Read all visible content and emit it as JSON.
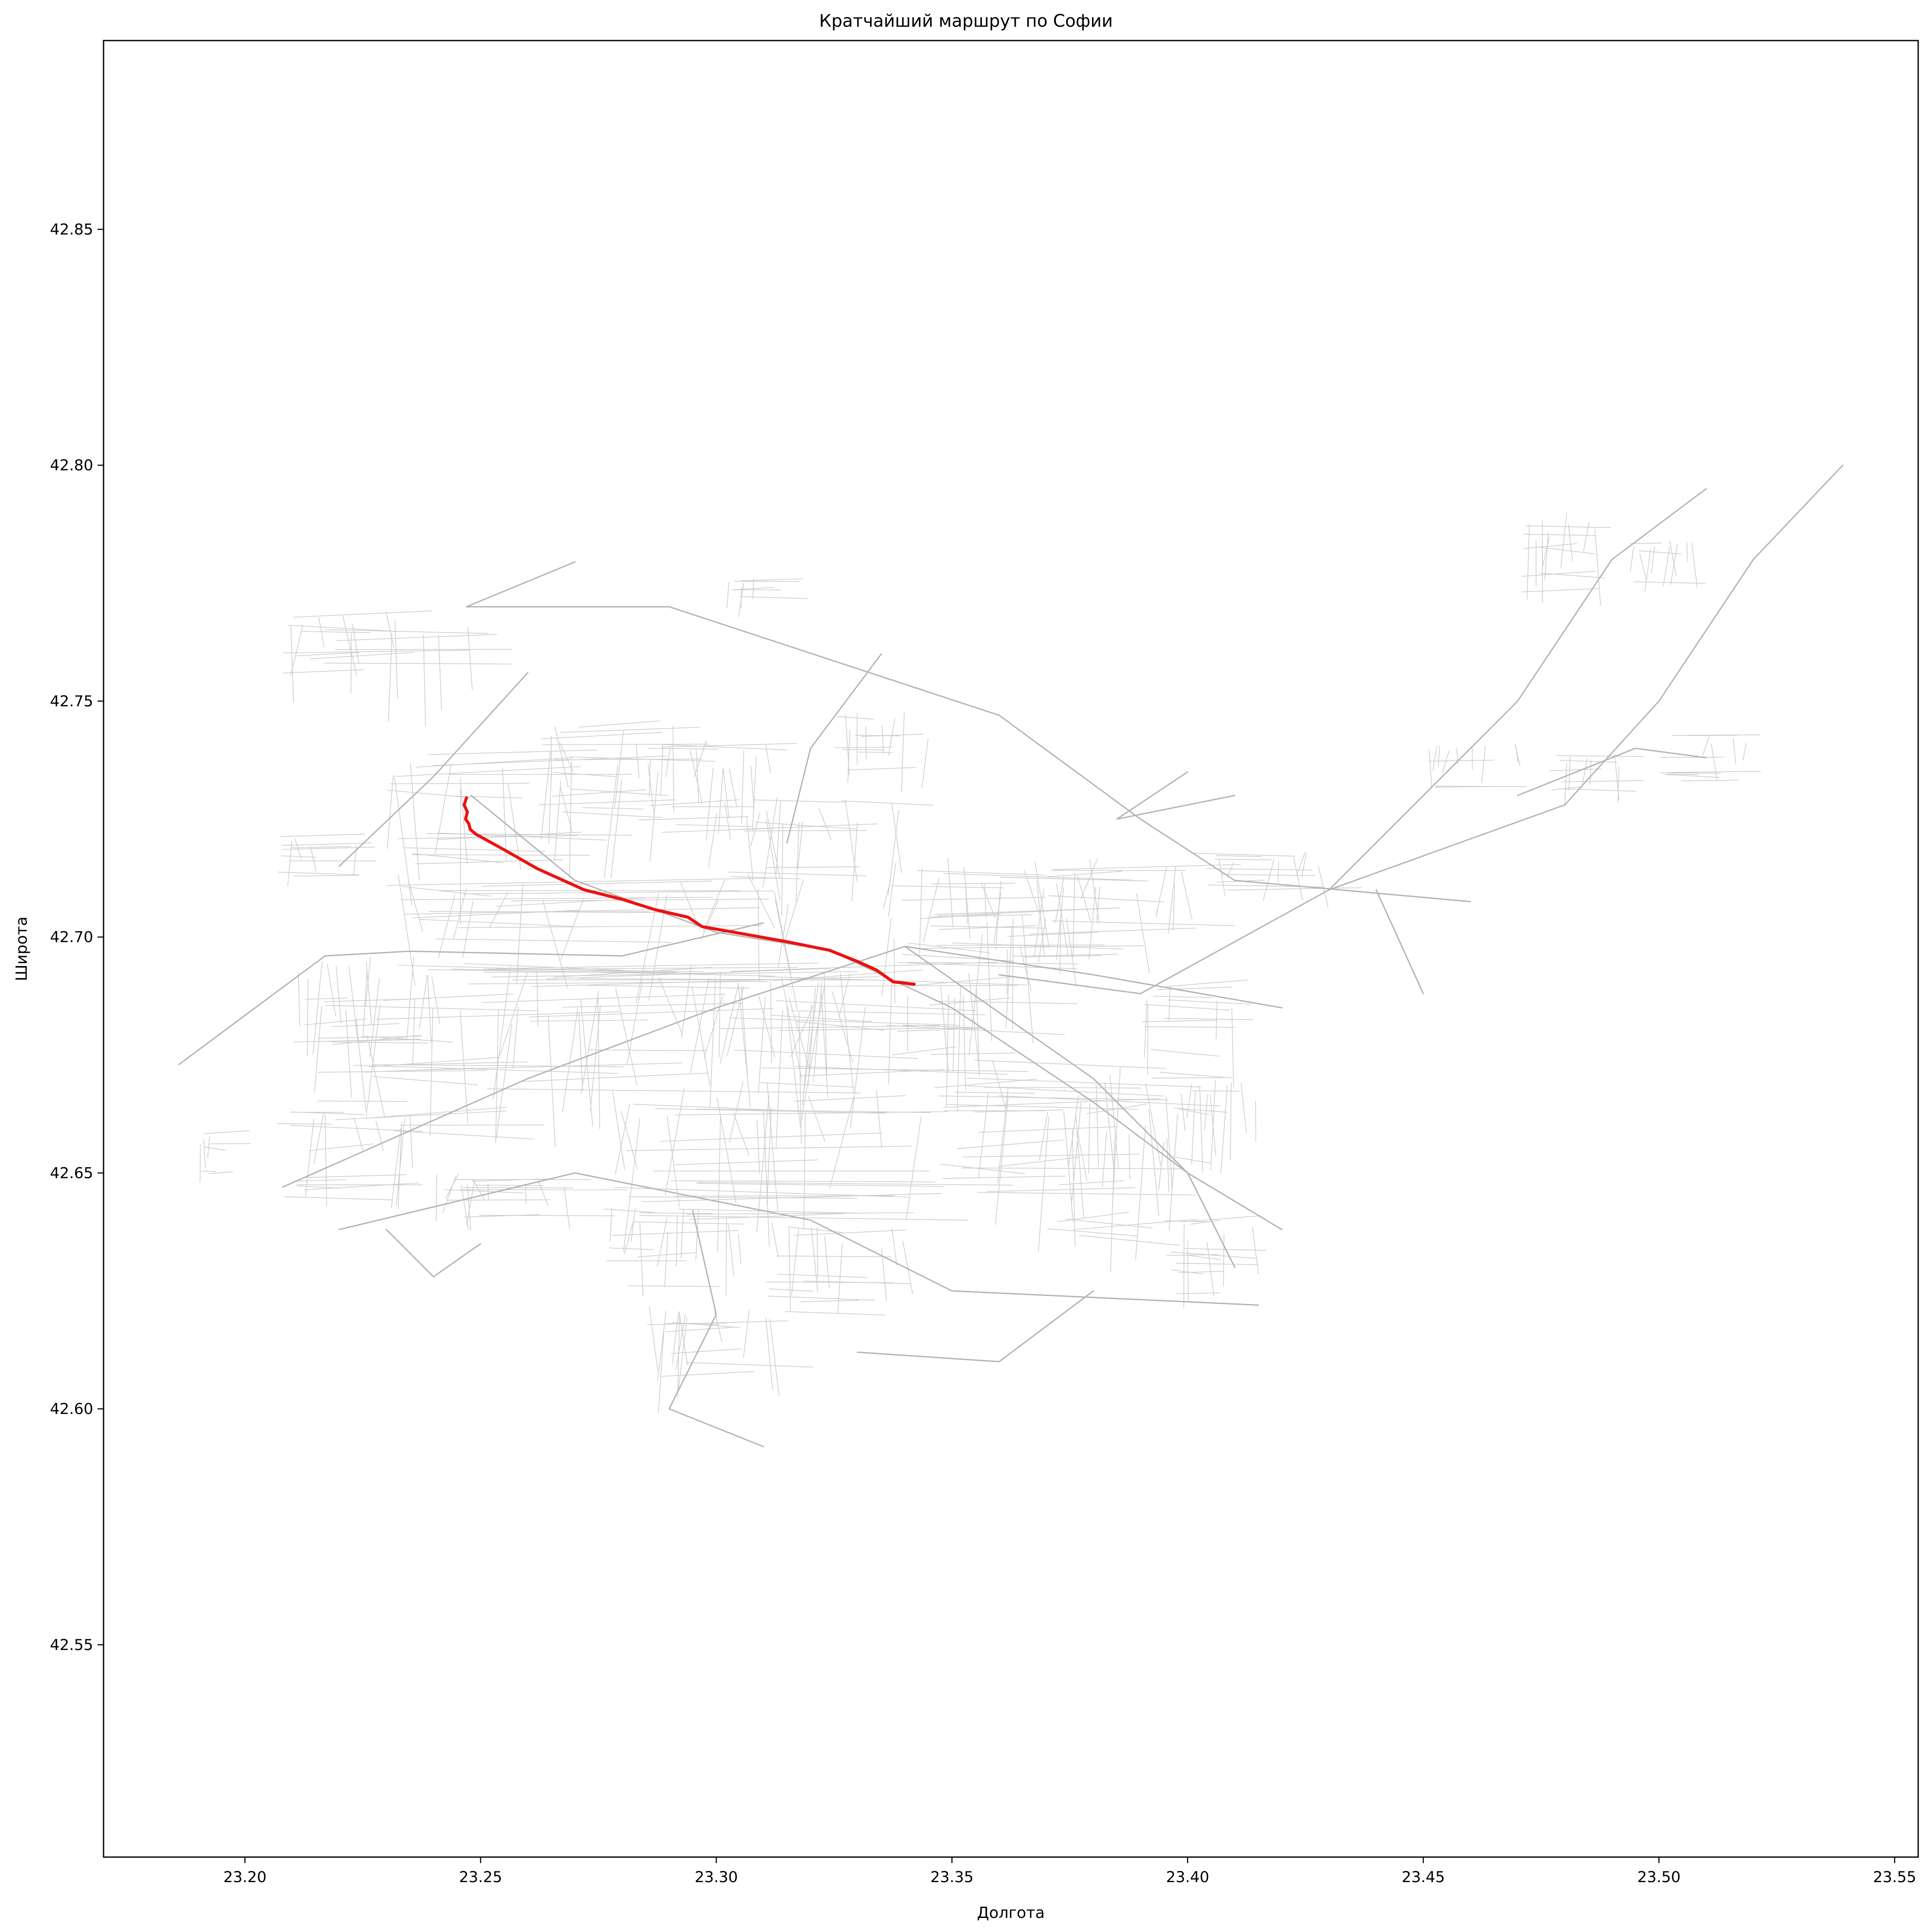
{
  "chart_data": {
    "type": "map",
    "title": "Кратчайший маршрут по Софии",
    "xlabel": "Долгота",
    "ylabel": "Широта",
    "xlim": [
      23.17,
      23.555
    ],
    "ylim": [
      42.505,
      42.89
    ],
    "xticks": [
      "23.20",
      "23.25",
      "23.30",
      "23.35",
      "23.40",
      "23.45",
      "23.50",
      "23.55"
    ],
    "xtick_values": [
      23.2,
      23.25,
      23.3,
      23.35,
      23.4,
      23.45,
      23.5,
      23.55
    ],
    "yticks": [
      "42.55",
      "42.60",
      "42.65",
      "42.70",
      "42.75",
      "42.80",
      "42.85"
    ],
    "ytick_values": [
      42.55,
      42.6,
      42.65,
      42.7,
      42.75,
      42.8,
      42.85
    ],
    "grid": false,
    "route": {
      "color": "#ee1111",
      "points": [
        [
          23.247,
          42.7295
        ],
        [
          23.2465,
          42.728
        ],
        [
          23.2472,
          42.7265
        ],
        [
          23.2468,
          42.725
        ],
        [
          23.2475,
          42.724
        ],
        [
          23.2478,
          42.7228
        ],
        [
          23.249,
          42.7218
        ],
        [
          23.255,
          42.7185
        ],
        [
          23.262,
          42.7145
        ],
        [
          23.272,
          42.71
        ],
        [
          23.28,
          42.708
        ],
        [
          23.287,
          42.7058
        ],
        [
          23.294,
          42.7042
        ],
        [
          23.297,
          42.7022
        ],
        [
          23.305,
          42.7008
        ],
        [
          23.315,
          42.699
        ],
        [
          23.324,
          42.6972
        ],
        [
          23.33,
          42.6948
        ],
        [
          23.334,
          42.693
        ],
        [
          23.3375,
          42.6905
        ],
        [
          23.342,
          42.69
        ]
      ]
    },
    "network": {
      "color": "#c4c4c4",
      "main_roads": [
        [
          [
            23.27,
            42.7795
          ],
          [
            23.247,
            42.77
          ],
          [
            23.29,
            42.77
          ],
          [
            23.36,
            42.747
          ],
          [
            23.39,
            42.725
          ],
          [
            23.41,
            42.712
          ],
          [
            23.46,
            42.7075
          ]
        ],
        [
          [
            23.248,
            42.73
          ],
          [
            23.27,
            42.712
          ],
          [
            23.3,
            42.701
          ],
          [
            23.324,
            42.6972
          ],
          [
            23.35,
            42.685
          ],
          [
            23.38,
            42.665
          ],
          [
            23.4,
            42.65
          ],
          [
            23.42,
            42.638
          ]
        ],
        [
          [
            23.208,
            42.647
          ],
          [
            23.26,
            42.67
          ],
          [
            23.3,
            42.685
          ],
          [
            23.34,
            42.698
          ],
          [
            23.38,
            42.692
          ],
          [
            23.42,
            42.685
          ]
        ],
        [
          [
            23.22,
            42.638
          ],
          [
            23.27,
            42.65
          ],
          [
            23.32,
            42.64
          ],
          [
            23.35,
            42.625
          ],
          [
            23.415,
            42.622
          ]
        ],
        [
          [
            23.186,
            42.673
          ],
          [
            23.217,
            42.696
          ],
          [
            23.235,
            42.697
          ],
          [
            23.28,
            42.696
          ],
          [
            23.31,
            42.703
          ]
        ],
        [
          [
            23.22,
            42.715
          ],
          [
            23.24,
            42.734
          ],
          [
            23.26,
            42.756
          ]
        ],
        [
          [
            23.36,
            42.692
          ],
          [
            23.39,
            42.688
          ],
          [
            23.43,
            42.71
          ],
          [
            23.48,
            42.728
          ],
          [
            23.5,
            42.75
          ],
          [
            23.52,
            42.78
          ],
          [
            23.539,
            42.8
          ]
        ],
        [
          [
            23.43,
            42.71
          ],
          [
            23.47,
            42.75
          ],
          [
            23.49,
            42.78
          ],
          [
            23.51,
            42.795
          ]
        ],
        [
          [
            23.34,
            42.698
          ],
          [
            23.38,
            42.67
          ],
          [
            23.4,
            42.65
          ],
          [
            23.41,
            42.63
          ]
        ],
        [
          [
            23.295,
            42.642
          ],
          [
            23.3,
            42.62
          ],
          [
            23.29,
            42.6
          ],
          [
            23.31,
            42.592
          ]
        ],
        [
          [
            23.335,
            42.76
          ],
          [
            23.32,
            42.74
          ],
          [
            23.315,
            42.72
          ]
        ],
        [
          [
            23.38,
            42.625
          ],
          [
            23.36,
            42.61
          ],
          [
            23.33,
            42.612
          ]
        ],
        [
          [
            23.23,
            42.638
          ],
          [
            23.24,
            42.628
          ],
          [
            23.25,
            42.635
          ]
        ],
        [
          [
            23.44,
            42.71
          ],
          [
            23.45,
            42.688
          ]
        ],
        [
          [
            23.4,
            42.735
          ],
          [
            23.385,
            42.725
          ],
          [
            23.41,
            42.73
          ]
        ],
        [
          [
            23.47,
            42.73
          ],
          [
            23.495,
            42.74
          ],
          [
            23.51,
            42.738
          ]
        ]
      ],
      "districts": [
        [
          23.275,
          42.702,
          0.09,
          0.024
        ],
        [
          23.29,
          42.679,
          0.08,
          0.03
        ],
        [
          23.31,
          42.655,
          0.07,
          0.03
        ],
        [
          23.33,
          42.678,
          0.06,
          0.03
        ],
        [
          23.355,
          42.69,
          0.04,
          0.03
        ],
        [
          23.36,
          42.707,
          0.05,
          0.02
        ],
        [
          23.245,
          42.673,
          0.06,
          0.03
        ],
        [
          23.225,
          42.687,
          0.03,
          0.02
        ],
        [
          23.22,
          42.654,
          0.03,
          0.02
        ],
        [
          23.255,
          42.724,
          0.05,
          0.03
        ],
        [
          23.28,
          42.735,
          0.04,
          0.02
        ],
        [
          23.298,
          42.731,
          0.03,
          0.02
        ],
        [
          23.32,
          42.72,
          0.04,
          0.02
        ],
        [
          23.335,
          42.738,
          0.02,
          0.02
        ],
        [
          23.228,
          42.76,
          0.04,
          0.02
        ],
        [
          23.31,
          42.772,
          0.015,
          0.008
        ],
        [
          23.215,
          42.717,
          0.02,
          0.01
        ],
        [
          23.37,
          42.66,
          0.05,
          0.03
        ],
        [
          23.385,
          42.65,
          0.03,
          0.03
        ],
        [
          23.38,
          42.705,
          0.04,
          0.02
        ],
        [
          23.4,
          42.68,
          0.02,
          0.02
        ],
        [
          23.405,
          42.66,
          0.02,
          0.02
        ],
        [
          23.405,
          42.63,
          0.02,
          0.02
        ],
        [
          23.325,
          42.63,
          0.03,
          0.02
        ],
        [
          23.29,
          42.633,
          0.03,
          0.02
        ],
        [
          23.3,
          42.613,
          0.03,
          0.02
        ],
        [
          23.415,
          42.713,
          0.03,
          0.01
        ],
        [
          23.46,
          42.736,
          0.02,
          0.01
        ],
        [
          23.48,
          42.78,
          0.02,
          0.02
        ],
        [
          23.485,
          42.734,
          0.02,
          0.01
        ],
        [
          23.5,
          42.779,
          0.02,
          0.01
        ],
        [
          23.51,
          42.738,
          0.02,
          0.01
        ],
        [
          23.195,
          42.654,
          0.01,
          0.01
        ],
        [
          23.26,
          42.645,
          0.04,
          0.01
        ]
      ]
    }
  }
}
